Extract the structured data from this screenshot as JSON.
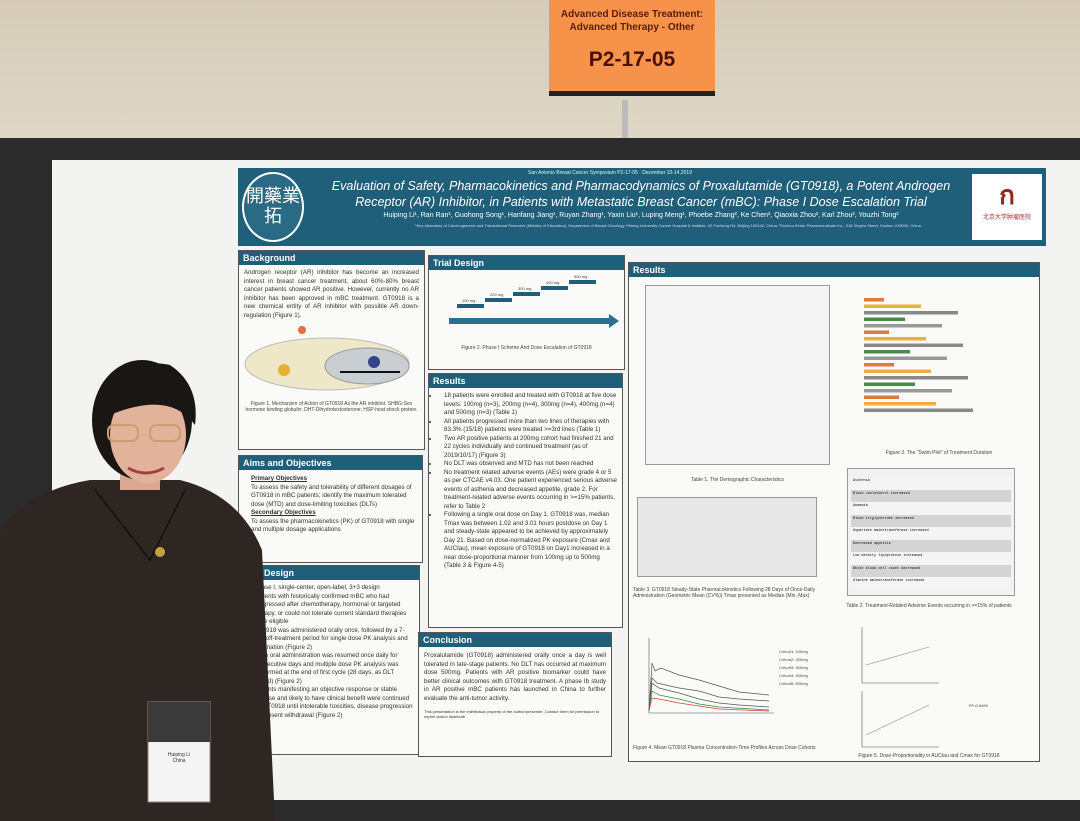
{
  "sign": {
    "category": "Advanced Disease Treatment: Advanced Therapy - Other",
    "code": "P2-17-05"
  },
  "poster": {
    "conference": "San Antonio Breast Cancer Symposium P2-17-05 · December 10-14,2019",
    "title": "Evaluation of Safety, Pharmacokinetics and Pharmacodynamics of Proxalutamide (GT0918), a Potent Androgen Receptor (AR) Inhibitor, in Patients with Metastatic Breast Cancer (mBC): Phase I Dose Escalation Trial",
    "authors": "Huiping Li¹, Ran Ran¹, Guohong Song¹, Hanfang Jiang¹, Ruyan Zhang¹, Yaxin Liu¹, Luping Meng¹, Phoebe Zhang², Ke Chen², Qiaoxia Zhou², Karl Zhou², Youzhi Tong²",
    "affiliations": "¹Key laboratory of Carcinogenesis and Translational Research (Ministry of Education), Department of Breast Oncology, Peking University Cancer Hospital & Institute, 52 Fucheng Rd, Beijing 100142, China; ²Suzhou Kintor Pharmaceuticals Inc., 218 Xinghu Street, Suzhou 215000, China",
    "logo_left": "開藥業拓",
    "logo_right": "北京大学肿瘤医院",
    "background": {
      "heading": "Background",
      "text": "Androgen receptor (AR) inhibitor has become an increased interest in breast cancer treatment, about 60%-80% breast cancer patients showed AR positive. However, currently no AR inhibitor has been approved in mBC treatment. GT0918 is a new chemical entity of AR inhibitor with possible AR down-regulation (Figure 1).",
      "caption": "Figure 1. Mechanism of Action of GT0918 As the AR inhibitor. SHBG-Sex hormone binding globulin; DHT-Dihydrotestosterone; HSP-heat shock protein."
    },
    "aims": {
      "heading": "Aims and Objectives",
      "primary_label": "Primary Objectives",
      "primary": "To assess the safety and tolerability of different dosages of GT0918 in mBC patients; identify the maximum tolerated dose (MTD) and dose-limiting toxicities (DLTs)",
      "secondary_label": "Secondary Objectives",
      "secondary": "To assess the pharmacokinetics (PK) of GT0918 with single and multiple dosage applications"
    },
    "trial_design_left": {
      "heading": "Trial Design",
      "items": [
        "Phase I, single-center, open-label, 3+3 design",
        "Patients with historically confirmed mBC who had progressed after chemotherapy, hormonal or targeted therapy, or could not tolerate current standard therapies were eligible",
        "GT0918 was administered orally once, followed by a 7-day off-treatment period for single dose PK analysis and elimination (Figure 2)",
        "Then oral administration was resumed once daily for consecutive days and multiple dose PK analysis was performed at the end of first cycle (28 days, as DLT period) (Figure 2)",
        "Patients manifesting an objective response or stable disease and likely to have clinical benefit were continued on GT0918 until intolerable toxicities, disease progression or consent withdrawal (Figure 2)"
      ]
    },
    "trial_design": {
      "heading": "Trial Design",
      "doses": [
        "100 mg",
        "200 mg",
        "300 mg",
        "400 mg",
        "500 mg"
      ],
      "caption": "Figure 2. Phase I Scheme And Dose Escalation of GT0918"
    },
    "results_mid": {
      "heading": "Results",
      "items": [
        "18 patients were enrolled and treated with GT0918 at five dose levels: 100mg (n=3), 200mg (n=4), 300mg (n=4), 400mg (n=4) and 500mg (n=3) (Table 1)",
        "All patients progressed more than two lines of therapies with 83.3% (15/18) patients were treated >=3rd lines (Table 1)",
        "Two AR positive patients at 200mg cohort had finished 21 and 22 cycles individually and continued treatment (as of 2019/10/17) (Figure 3)",
        "No DLT was observed and MTD has not been reached",
        "No treatment related adverse events (AEs) were grade 4 or 5 as per CTCAE v4.03. One patient experienced serious adverse events of asthenia and decreased appetite, grade 2. For treatment-related adverse events occurring in >=15% patients, refer to Table 2",
        "Following a single oral dose on Day 1, GT0918 was, median Tmax was between 1.02 and 3.01 hours postdose on Day 1 and steady-state appeared to be achieved by approximately Day 21. Based on dose-normalized PK exposure (Cmax and AUCtau), mean exposure of GT0918 on Day1 increased in a near dose-proportional manner from 100mg up to 500mg (Table 3 & Figure 4-5)"
      ]
    },
    "conclusion": {
      "heading": "Conclusion",
      "text": "Proxalutamide (GT0918) administered orally once a day is well tolerated in late-stage patients. No DLT has occurred at maximum dose 500mg. Patients with AR positive biomarker could have better clinical outcomes with GT0918 treatment. A phase Ib study in AR positive mBC patients has launched in China to further evaluate the anti-tumor activity.",
      "footnote": "This presentation is the intellectual property of the author/presenter. Contact them for permission to reprint and/or distribute."
    },
    "results_right": {
      "heading": "Results",
      "table1_caption": "Table 1. The Demographic Characteristics",
      "table3_caption": "Table 3. GT0918 Steady-State Pharmacokinetics Following 28 Days of Once-Daily Administration (Geometric Mean (CV%)) Tmax presented as Median (Min, Max)",
      "fig3_caption": "Figure 3. The \"Swim Plot\" of Treatment Duration",
      "table2_caption": "Table 2. Treatment-Related Adverse Events occurring in >=15% of patients",
      "table2_rows": [
        "Asthenia",
        "Blood cholesterol increased",
        "Anaemia",
        "Blood triglycerides increased",
        "Aspartate aminotransferase increased",
        "Decreased appetite",
        "Low density lipoprotein increased",
        "White blood cell count decreased",
        "Alanine aminotransferase increased"
      ],
      "fig4_caption": "Figure 4. Mean GT0918 Plasma Concentration-Time Profiles Across Dose Cohorts",
      "fig4_legend": [
        "Cohort1: 100mg",
        "Cohort2: 200mg",
        "Cohort3: 300mg",
        "Cohort4: 400mg",
        "Cohort5: 500mg"
      ],
      "fig5_caption": "Figure 5. Dose-Proportionality in AUCtau and Cmax for GT0918",
      "fig5_r2": "R²=0.6469"
    }
  },
  "badge": {
    "name": "Huiping Li",
    "country": "China"
  },
  "colors": {
    "poster_accent": "#1f5f7a",
    "sign": "#f7924a"
  }
}
